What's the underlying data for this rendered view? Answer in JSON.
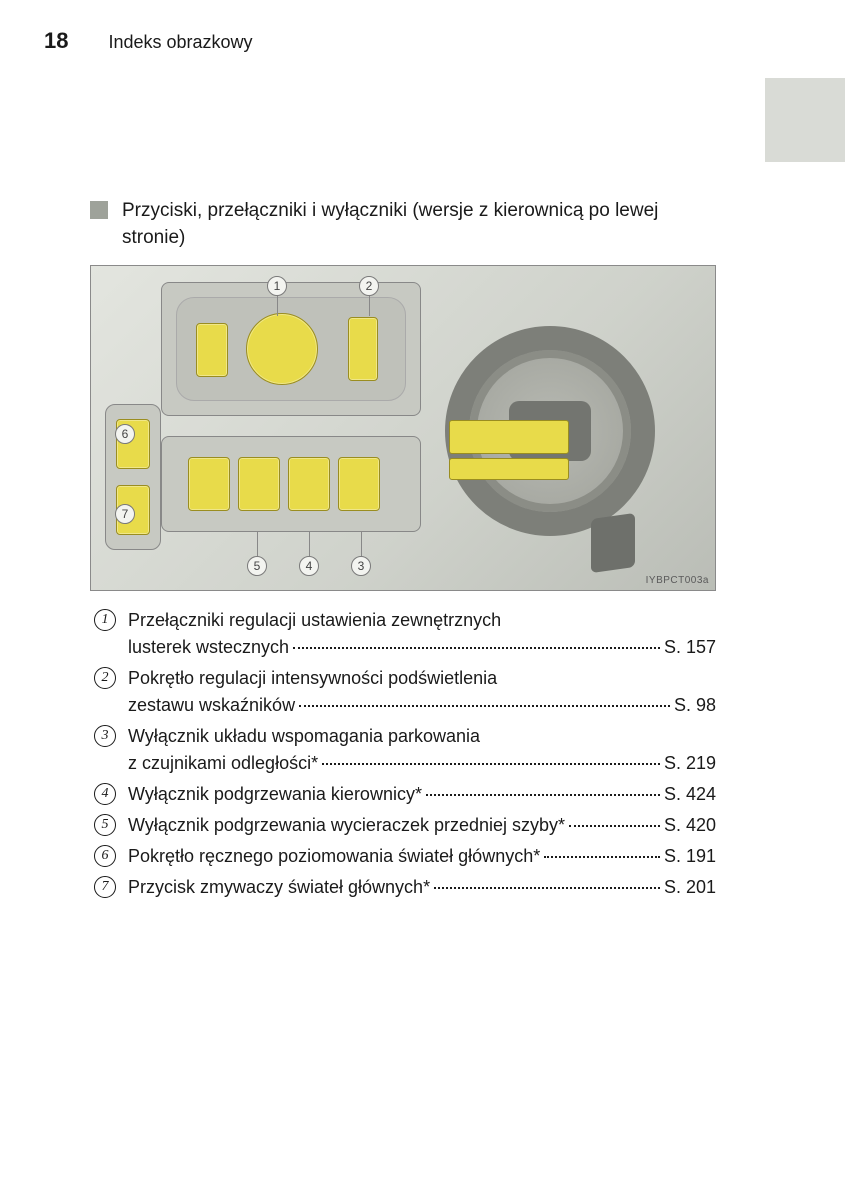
{
  "page_number": "18",
  "header_title": "Indeks obrazkowy",
  "figure_code": "IYBPCT003a",
  "section_heading": "Przyciski, przełączniki i wyłączniki (wersje z kierownicą po lewej stronie)",
  "colors": {
    "tab_block": "#d9dbd6",
    "bullet": "#9ea29a",
    "highlight": "#e8db4a",
    "figure_border": "#8a8a8a"
  },
  "items": [
    {
      "n": "1",
      "line1": "Przełączniki regulacji ustawienia zewnętrznych",
      "lead": "lusterek wstecznych",
      "page": "S. 157"
    },
    {
      "n": "2",
      "line1": "Pokrętło regulacji intensywności podświetlenia",
      "lead": "zestawu wskaźników",
      "page": "S. 98"
    },
    {
      "n": "3",
      "line1": "Wyłącznik układu wspomagania parkowania",
      "lead": "z czujnikami odległości*",
      "page": "S. 219"
    },
    {
      "n": "4",
      "lead": "Wyłącznik podgrzewania kierownicy*",
      "page": "S. 424"
    },
    {
      "n": "5",
      "lead": "Wyłącznik podgrzewania wycieraczek przedniej szyby*",
      "page": "S. 420"
    },
    {
      "n": "6",
      "lead": "Pokrętło ręcznego poziomowania świateł głównych*",
      "page": "S. 191"
    },
    {
      "n": "7",
      "lead": "Przycisk zmywaczy świateł głównych*",
      "page": "S. 201"
    }
  ]
}
